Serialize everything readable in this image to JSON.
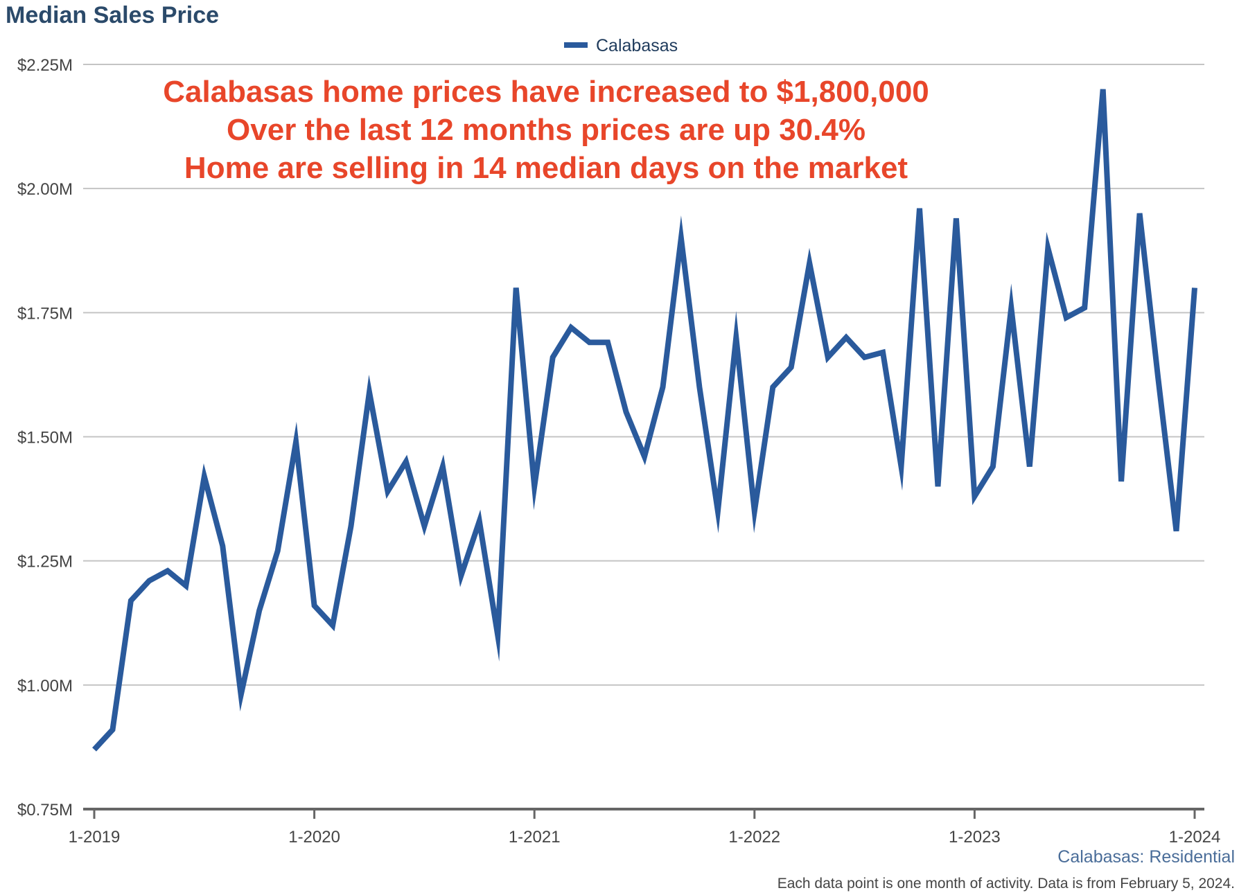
{
  "chart_data": {
    "type": "line",
    "title": "Median Sales Price",
    "xlabel": "",
    "ylabel": "",
    "x_tick_labels": [
      "1-2019",
      "1-2020",
      "1-2021",
      "1-2022",
      "1-2023",
      "1-2024"
    ],
    "y_tick_labels": [
      "$0.75M",
      "$1.00M",
      "$1.25M",
      "$1.50M",
      "$1.75M",
      "$2.00M",
      "$2.25M"
    ],
    "y_tick_values": [
      0.75,
      1.0,
      1.25,
      1.5,
      1.75,
      2.0,
      2.25
    ],
    "ylim": [
      0.75,
      2.25
    ],
    "x_start": "1-2019",
    "x_months": 61,
    "legend": {
      "position": "top-center",
      "entries": [
        "Calabasas"
      ]
    },
    "grid": true,
    "colors": {
      "series": "#2a5a9c",
      "annotation": "#e8462a",
      "title": "#2b4a6a"
    },
    "series": [
      {
        "name": "Calabasas",
        "values": [
          0.87,
          0.91,
          1.17,
          1.21,
          1.23,
          1.2,
          1.42,
          1.28,
          0.98,
          1.15,
          1.27,
          1.49,
          1.16,
          1.12,
          1.32,
          1.59,
          1.39,
          1.45,
          1.32,
          1.44,
          1.22,
          1.33,
          1.1,
          1.8,
          1.4,
          1.66,
          1.72,
          1.69,
          1.69,
          1.55,
          1.46,
          1.6,
          1.9,
          1.6,
          1.35,
          1.7,
          1.35,
          1.6,
          1.64,
          1.85,
          1.66,
          1.7,
          1.66,
          1.67,
          1.44,
          1.96,
          1.4,
          1.94,
          1.38,
          1.44,
          1.76,
          1.44,
          1.88,
          1.74,
          1.76,
          2.2,
          1.41,
          1.95,
          1.62,
          1.31,
          1.8
        ]
      }
    ],
    "annotations": [
      "Calabasas home prices have increased to $1,800,000",
      "Over the last 12 months prices are up 30.4%",
      "Home are selling in 14 median days on the market"
    ],
    "source_label": "Calabasas: Residential",
    "footnote": "Each data point is one month of activity. Data is from February 5, 2024."
  }
}
